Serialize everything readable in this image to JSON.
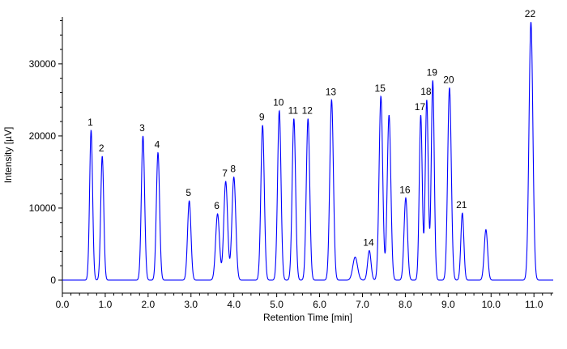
{
  "chart_data": {
    "type": "line",
    "title": "",
    "xlabel": "Retention Time [min]",
    "ylabel": "Intensity [µV]",
    "xlim": [
      0,
      11.45
    ],
    "ylim": [
      -1800,
      36500
    ],
    "x_ticks": [
      0.0,
      1.0,
      2.0,
      3.0,
      4.0,
      5.0,
      6.0,
      7.0,
      8.0,
      9.0,
      10.0,
      11.0
    ],
    "x_tick_labels": [
      "0.0",
      "1.0",
      "2.0",
      "3.0",
      "4.0",
      "5.0",
      "6.0",
      "7.0",
      "8.0",
      "9.0",
      "10.0",
      "11.0"
    ],
    "y_ticks": [
      0,
      10000,
      20000,
      30000
    ],
    "y_tick_labels": [
      "0",
      "10000",
      "20000",
      "30000"
    ],
    "baseline": 0,
    "line_color": "#0000ff",
    "grid": false,
    "peaks": [
      {
        "label": "1",
        "rt": 0.67,
        "height": 20800,
        "width": 0.035
      },
      {
        "label": "2",
        "rt": 0.93,
        "height": 17200,
        "width": 0.035
      },
      {
        "label": "3",
        "rt": 1.88,
        "height": 20000,
        "width": 0.038
      },
      {
        "label": "4",
        "rt": 2.23,
        "height": 17700,
        "width": 0.038
      },
      {
        "label": "5",
        "rt": 2.96,
        "height": 11000,
        "width": 0.04
      },
      {
        "label": "6",
        "rt": 3.62,
        "height": 9200,
        "width": 0.045
      },
      {
        "label": "7",
        "rt": 3.81,
        "height": 13700,
        "width": 0.045
      },
      {
        "label": "8",
        "rt": 4.0,
        "height": 14300,
        "width": 0.045
      },
      {
        "label": "9",
        "rt": 4.67,
        "height": 21500,
        "width": 0.04
      },
      {
        "label": "10",
        "rt": 5.06,
        "height": 23500,
        "width": 0.04
      },
      {
        "label": "11",
        "rt": 5.4,
        "height": 22400,
        "width": 0.04
      },
      {
        "label": "12",
        "rt": 5.73,
        "height": 22400,
        "width": 0.04
      },
      {
        "label": "13",
        "rt": 6.28,
        "height": 25000,
        "width": 0.042
      },
      {
        "label": "",
        "rt": 6.83,
        "height": 3200,
        "width": 0.055
      },
      {
        "label": "14",
        "rt": 7.16,
        "height": 4100,
        "width": 0.04
      },
      {
        "label": "15",
        "rt": 7.43,
        "height": 25500,
        "width": 0.042
      },
      {
        "label": "",
        "rt": 7.62,
        "height": 22900,
        "width": 0.042
      },
      {
        "label": "16",
        "rt": 8.01,
        "height": 11400,
        "width": 0.04
      },
      {
        "label": "17",
        "rt": 8.36,
        "height": 22900,
        "width": 0.035
      },
      {
        "label": "18",
        "rt": 8.5,
        "height": 25000,
        "width": 0.035
      },
      {
        "label": "19",
        "rt": 8.64,
        "height": 27700,
        "width": 0.035
      },
      {
        "label": "20",
        "rt": 9.03,
        "height": 26700,
        "width": 0.042
      },
      {
        "label": "21",
        "rt": 9.33,
        "height": 9300,
        "width": 0.035
      },
      {
        "label": "",
        "rt": 9.88,
        "height": 7000,
        "width": 0.04
      },
      {
        "label": "22",
        "rt": 10.93,
        "height": 35800,
        "width": 0.045
      }
    ]
  }
}
